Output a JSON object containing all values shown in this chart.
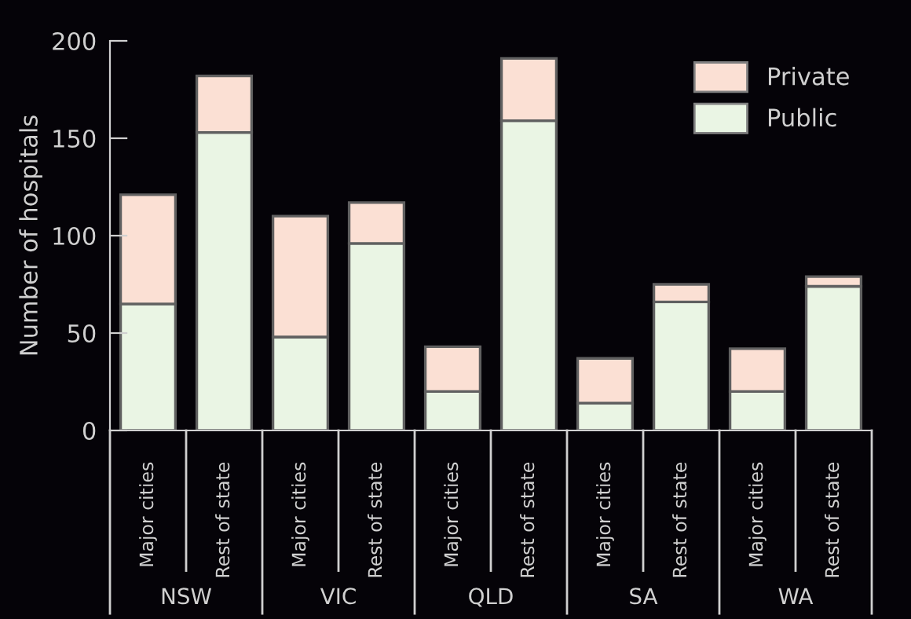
{
  "chart_data": {
    "type": "bar",
    "stacked": true,
    "ylabel": "Number of hospitals",
    "categories": [
      "Major cities",
      "Rest of state",
      "Major cities",
      "Rest of state",
      "Major cities",
      "Rest of state",
      "Major cities",
      "Rest of state",
      "Major cities",
      "Rest of state"
    ],
    "series": [
      {
        "name": "Public",
        "color": "#eaf5e4",
        "values": [
          65,
          153,
          48,
          96,
          20,
          159,
          14,
          66,
          20,
          74
        ]
      },
      {
        "name": "Private",
        "color": "#fbe0d4",
        "values": [
          56,
          29,
          62,
          21,
          23,
          32,
          23,
          9,
          22,
          5
        ]
      }
    ],
    "annotations": [
      "NSW",
      "VIC",
      "QLD",
      "SA",
      "WA"
    ],
    "ylim": [
      0,
      200
    ],
    "yticks": [
      0,
      50,
      100,
      150,
      200
    ],
    "grid": false,
    "legend": "top right"
  }
}
